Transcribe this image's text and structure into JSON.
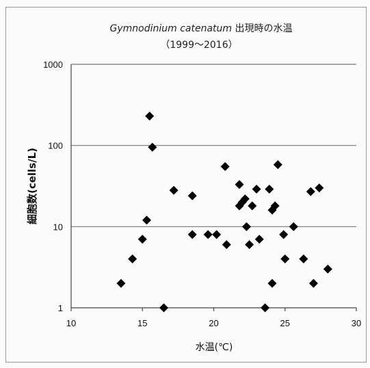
{
  "chart_data": {
    "type": "scatter",
    "title_italic": "Gymnodinium catenatum",
    "title_rest": "出現時の水温",
    "subtitle": "（1999～2016）",
    "xlabel": "水温(℃)",
    "ylabel": "細胞数(cells/L)",
    "xlim": [
      10,
      30
    ],
    "ylim": [
      1,
      1000
    ],
    "yscale": "log",
    "grid": "horizontal",
    "xticks": [
      "10",
      "15",
      "20",
      "25",
      "30"
    ],
    "yticks": [
      "1",
      "10",
      "100",
      "1000"
    ],
    "colors": {
      "marker": "#000000",
      "grid": "#777777",
      "axis": "#444444"
    },
    "points": [
      {
        "x": 13.5,
        "y": 2
      },
      {
        "x": 14.3,
        "y": 4
      },
      {
        "x": 15.0,
        "y": 7
      },
      {
        "x": 15.3,
        "y": 12
      },
      {
        "x": 15.5,
        "y": 230
      },
      {
        "x": 15.7,
        "y": 95
      },
      {
        "x": 16.5,
        "y": 1
      },
      {
        "x": 17.2,
        "y": 28
      },
      {
        "x": 18.5,
        "y": 24
      },
      {
        "x": 18.5,
        "y": 8
      },
      {
        "x": 19.6,
        "y": 8
      },
      {
        "x": 20.2,
        "y": 8
      },
      {
        "x": 20.8,
        "y": 55
      },
      {
        "x": 20.9,
        "y": 6
      },
      {
        "x": 21.8,
        "y": 33
      },
      {
        "x": 21.8,
        "y": 18
      },
      {
        "x": 22.0,
        "y": 20
      },
      {
        "x": 22.2,
        "y": 22
      },
      {
        "x": 22.3,
        "y": 10
      },
      {
        "x": 22.5,
        "y": 6
      },
      {
        "x": 22.7,
        "y": 18
      },
      {
        "x": 23.0,
        "y": 29
      },
      {
        "x": 23.2,
        "y": 7
      },
      {
        "x": 23.6,
        "y": 1
      },
      {
        "x": 23.9,
        "y": 29
      },
      {
        "x": 24.1,
        "y": 16
      },
      {
        "x": 24.1,
        "y": 2
      },
      {
        "x": 24.3,
        "y": 18
      },
      {
        "x": 24.5,
        "y": 58
      },
      {
        "x": 24.9,
        "y": 8
      },
      {
        "x": 25.0,
        "y": 4
      },
      {
        "x": 25.6,
        "y": 10
      },
      {
        "x": 26.3,
        "y": 4
      },
      {
        "x": 26.8,
        "y": 27
      },
      {
        "x": 27.0,
        "y": 2
      },
      {
        "x": 27.4,
        "y": 30
      },
      {
        "x": 28.0,
        "y": 3
      }
    ]
  }
}
